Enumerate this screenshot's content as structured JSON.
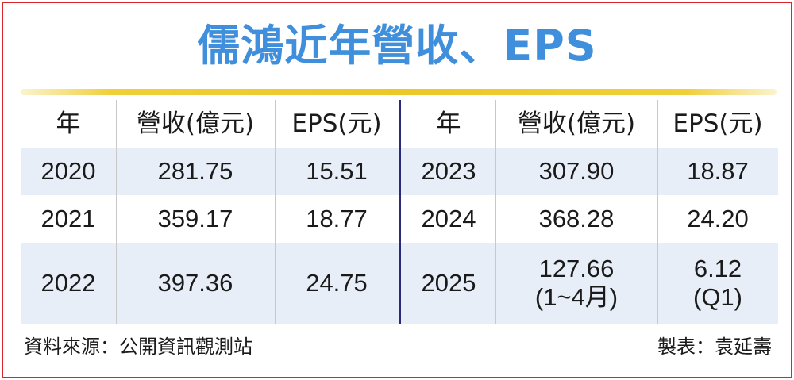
{
  "title": "儒鴻近年營收、EPS",
  "header": {
    "year": "年",
    "revenue": "營收(億元)",
    "eps": "EPS(元)"
  },
  "rows": [
    {
      "left": {
        "year": "2020",
        "revenue": "281.75",
        "eps": "15.51"
      },
      "right": {
        "year": "2023",
        "revenue": "307.90",
        "eps": "18.87"
      }
    },
    {
      "left": {
        "year": "2021",
        "revenue": "359.17",
        "eps": "18.77"
      },
      "right": {
        "year": "2024",
        "revenue": "368.28",
        "eps": "24.20"
      }
    },
    {
      "left": {
        "year": "2022",
        "revenue": "397.36",
        "eps": "24.75"
      },
      "right": {
        "year": "2025",
        "revenue": "127.66",
        "revenue_note": "(1~4月)",
        "eps": "6.12",
        "eps_note": "(Q1)"
      }
    }
  ],
  "footer": {
    "source": "資料來源：公開資訊觀測站",
    "maker": "製表：袁延壽"
  },
  "colors": {
    "title": "#3f8fdc",
    "border": "#d9262c",
    "title_bar": "#edc728",
    "row_band": "#e8eef7",
    "divider": "#2b2a7a"
  }
}
